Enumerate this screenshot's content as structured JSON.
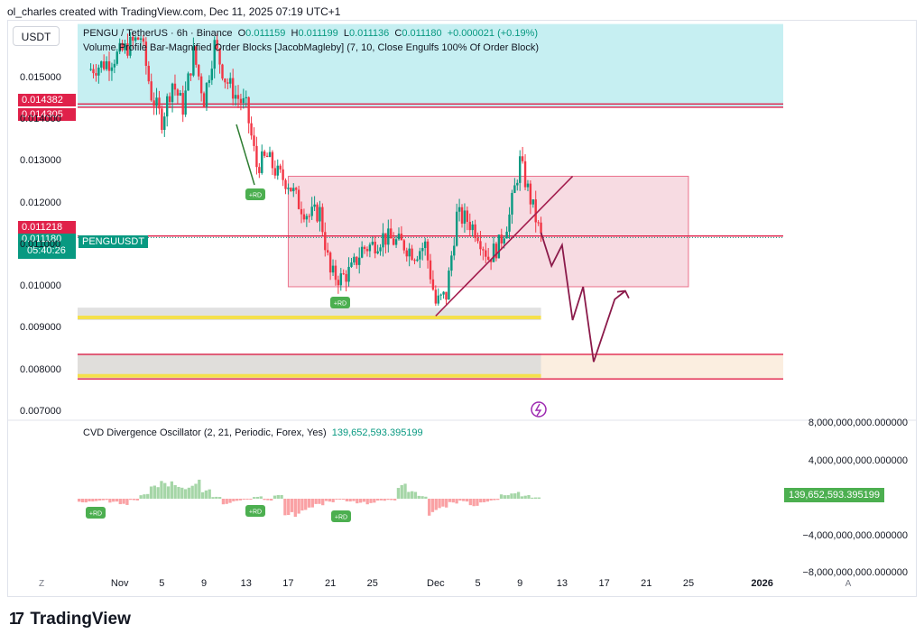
{
  "header": {
    "author_line": "ol_charles created with TradingView.com, Dec 11, 2025 07:19 UTC+1"
  },
  "currency_button": "USDT",
  "legend": {
    "symbol": "PENGU / TetherUS · 6h · Binance",
    "o_label": "O",
    "o": "0.011159",
    "h_label": "H",
    "h": "0.011199",
    "l_label": "L",
    "l": "0.011136",
    "c_label": "C",
    "c": "0.011180",
    "change": "+0.000021 (+0.19%)",
    "indicator": "Volume Profile Bar-Magnified Order Blocks [JacobMagleby] (7, 10, Close Engulfs 100% Of Order Block)"
  },
  "price_tags": {
    "upper1": "0.014382",
    "upper2": "0.014305",
    "mid_red": "0.011218",
    "last_price": "0.011180",
    "countdown": "05:40:26",
    "symbol_tag": "PENGUUSDT"
  },
  "cvd": {
    "title": "CVD Divergence Oscillator (2, 21, Periodic, Forex, Yes)",
    "value": "139,652,593.395199",
    "axis_ticks": [
      "8,000,000,000.000000",
      "4,000,000,000.000000",
      "0.000000",
      "−4,000,000,000.000000",
      "−8,000,000,000.000000"
    ]
  },
  "signals": {
    "rd_label": "+RD"
  },
  "x_axis": {
    "ticks": [
      "Nov",
      "5",
      "9",
      "13",
      "17",
      "21",
      "25",
      "Dec",
      "5",
      "9",
      "13",
      "17",
      "21",
      "25",
      "2026"
    ],
    "left_button": "Z",
    "right_button": "A"
  },
  "footer": {
    "logo_mark": "17",
    "brand": "TradingView"
  },
  "colors": {
    "up": "#089981",
    "down": "#f23645",
    "zone_cyan": "#c6eff2",
    "zone_pink": "#f7dbe2",
    "line_red": "#e0214a",
    "projection": "#8b1a4a",
    "cvd_up": "#a5d6a7",
    "cvd_down": "#faa1a4"
  },
  "chart_data": {
    "type": "candlestick",
    "title": "PENGU / TetherUS · 6h · Binance",
    "x_unit": "date",
    "x_range": [
      "2025-10-28",
      "2026-01-03"
    ],
    "ylim": [
      0.0068,
      0.0164
    ],
    "y_ticks": [
      0.015,
      0.014,
      0.013,
      0.012,
      0.011,
      0.01,
      0.009,
      0.008,
      0.007
    ],
    "y_tick_labels": [
      "0.015000",
      "0.014000",
      "0.013000",
      "0.012000",
      "0.011000",
      "0.010000",
      "0.009000",
      "0.008000",
      "0.007000"
    ],
    "close_path": [
      [
        "2025-10-29",
        0.0152
      ],
      [
        "2025-10-31",
        0.0154
      ],
      [
        "2025-11-02",
        0.0158
      ],
      [
        "2025-11-03",
        0.016
      ],
      [
        "2025-11-04",
        0.0146
      ],
      [
        "2025-11-05",
        0.014
      ],
      [
        "2025-11-06",
        0.0149
      ],
      [
        "2025-11-07",
        0.0143
      ],
      [
        "2025-11-08",
        0.0156
      ],
      [
        "2025-11-09",
        0.0145
      ],
      [
        "2025-11-10",
        0.0158
      ],
      [
        "2025-11-11",
        0.015
      ],
      [
        "2025-11-12",
        0.0146
      ],
      [
        "2025-11-13",
        0.0143
      ],
      [
        "2025-11-14",
        0.0129
      ],
      [
        "2025-11-15",
        0.0131
      ],
      [
        "2025-11-16",
        0.0127
      ],
      [
        "2025-11-17",
        0.0125
      ],
      [
        "2025-11-18",
        0.012
      ],
      [
        "2025-11-19",
        0.0117
      ],
      [
        "2025-11-20",
        0.0118
      ],
      [
        "2025-11-21",
        0.0103
      ],
      [
        "2025-11-22",
        0.0102
      ],
      [
        "2025-11-23",
        0.0104
      ],
      [
        "2025-11-24",
        0.0109
      ],
      [
        "2025-11-25",
        0.011
      ],
      [
        "2025-11-26",
        0.0112
      ],
      [
        "2025-11-27",
        0.0111
      ],
      [
        "2025-11-28",
        0.011
      ],
      [
        "2025-11-29",
        0.0108
      ],
      [
        "2025-11-30",
        0.011
      ],
      [
        "2025-12-01",
        0.0096
      ],
      [
        "2025-12-02",
        0.0098
      ],
      [
        "2025-12-03",
        0.0117
      ],
      [
        "2025-12-04",
        0.0116
      ],
      [
        "2025-12-05",
        0.0113
      ],
      [
        "2025-12-06",
        0.0107
      ],
      [
        "2025-12-07",
        0.011
      ],
      [
        "2025-12-08",
        0.0117
      ],
      [
        "2025-12-09",
        0.013
      ],
      [
        "2025-12-10",
        0.0121
      ],
      [
        "2025-12-11",
        0.01118
      ]
    ],
    "projection_path": [
      [
        "2025-12-11",
        0.0113
      ],
      [
        "2025-12-12",
        0.0105
      ],
      [
        "2025-12-13",
        0.011
      ],
      [
        "2025-12-14",
        0.0092
      ],
      [
        "2025-12-15",
        0.01
      ],
      [
        "2025-12-16",
        0.0082
      ],
      [
        "2025-12-18",
        0.0097
      ],
      [
        "2025-12-19",
        0.0099
      ]
    ],
    "zones": [
      {
        "name": "upper order block",
        "from": "2025-10-28",
        "to": "2026-01-03",
        "low": 0.0143,
        "high": 0.0163
      },
      {
        "name": "range box",
        "from": "2025-11-17",
        "to": "2025-12-25",
        "low": 0.01,
        "high": 0.01265
      },
      {
        "name": "lower demand",
        "from": "2025-10-28",
        "to": "2026-01-03",
        "low": 0.00779,
        "high": 0.00838
      }
    ],
    "horizontal_levels": [
      0.014382,
      0.014305,
      0.011218,
      0.00838,
      0.00779
    ],
    "trendline": [
      [
        "2025-12-01",
        0.0093
      ],
      [
        "2025-12-14",
        0.01265
      ]
    ],
    "cvd_series": {
      "name": "CVD Divergence Oscillator",
      "ylim": [
        -8000000000,
        8000000000
      ],
      "values": [
        -400000000,
        -300000000,
        -200000000,
        -500000000,
        -900000000,
        -200000000,
        500000000,
        1400000000,
        1900000000,
        2100000000,
        1700000000,
        2300000000,
        1000000000,
        200000000,
        -600000000,
        -300000000,
        -100000000,
        300000000,
        -200000000,
        400000000,
        -1800000000,
        -2000000000,
        -1500000000,
        -900000000,
        -400000000,
        -100000000,
        -300000000,
        -500000000,
        -700000000,
        -300000000,
        -200000000,
        1600000000,
        800000000,
        300000000,
        -2000000000,
        -1400000000,
        -600000000,
        -300000000,
        -800000000,
        -400000000,
        -200000000,
        600000000,
        900000000,
        400000000,
        139652593
      ]
    }
  }
}
